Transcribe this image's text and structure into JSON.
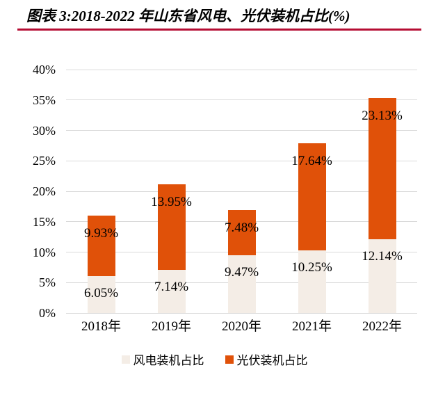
{
  "header": {
    "title": "图表 3:2018-2022 年山东省风电、光伏装机占比(%)",
    "rule_color": "#B50D33"
  },
  "chart_data": {
    "type": "bar",
    "stacked": true,
    "title": "图表 3:2018-2022 年山东省风电、光伏装机占比(%)",
    "categories": [
      "2018年",
      "2019年",
      "2020年",
      "2021年",
      "2022年"
    ],
    "series": [
      {
        "id": "wind",
        "name": "风电装机占比",
        "color": "#F4EDE6",
        "values": [
          6.05,
          7.14,
          9.47,
          10.25,
          12.14
        ],
        "labels": [
          "6.05%",
          "7.14%",
          "9.47%",
          "10.25%",
          "12.14%"
        ]
      },
      {
        "id": "solar",
        "name": "光伏装机占比",
        "color": "#E05109",
        "values": [
          9.93,
          13.95,
          7.48,
          17.64,
          23.13
        ],
        "labels": [
          "9.93%",
          "13.95%",
          "7.48%",
          "17.64%",
          "23.13%"
        ]
      }
    ],
    "xlabel": "",
    "ylabel": "",
    "ylim": [
      0,
      40
    ],
    "ytick_step": 5,
    "ytick_labels": [
      "0%",
      "5%",
      "10%",
      "15%",
      "20%",
      "25%",
      "30%",
      "35%",
      "40%"
    ],
    "grid": true,
    "gridline_color": "#D9D9D9",
    "legend_position": "bottom",
    "value_suffix": "%"
  }
}
